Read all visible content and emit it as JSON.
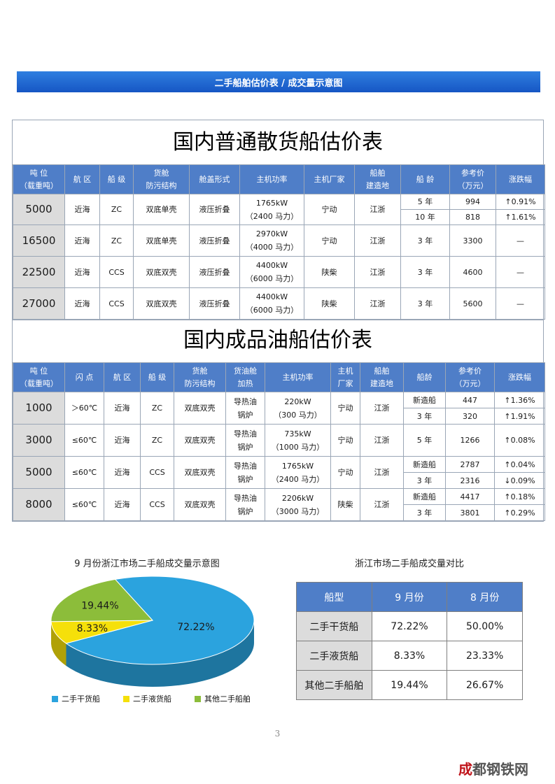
{
  "banner": "二手船舶估价表 / 成交量示意图",
  "bulk": {
    "title": "国内普通散货船估价表",
    "headers": [
      "吨 位",
      "（载重吨）",
      "航 区",
      "船 级",
      "货舱",
      "防污结构",
      "舱盖形式",
      "主机功率",
      "主机厂家",
      "船舶",
      "建造地",
      "船 龄",
      "参考价",
      "（万元）",
      "涨跌幅"
    ],
    "rows": [
      {
        "ton": "5000",
        "area": "近海",
        "cls": "ZC",
        "struct": "双底单壳",
        "cover": "液压折叠",
        "power": "1765kW",
        "hp": "（2400 马力）",
        "maker": "宁动",
        "place": "江浙",
        "subs": [
          {
            "age": "5 年",
            "price": "994",
            "chg": "↑0.91%"
          },
          {
            "age": "10 年",
            "price": "818",
            "chg": "↑1.61%"
          }
        ]
      },
      {
        "ton": "16500",
        "area": "近海",
        "cls": "ZC",
        "struct": "双底单壳",
        "cover": "液压折叠",
        "power": "2970kW",
        "hp": "（4000 马力）",
        "maker": "宁动",
        "place": "江浙",
        "age": "3 年",
        "price": "3300",
        "chg": "—"
      },
      {
        "ton": "22500",
        "area": "近海",
        "cls": "CCS",
        "struct": "双底双壳",
        "cover": "液压折叠",
        "power": "4400kW",
        "hp": "（6000 马力）",
        "maker": "陕柴",
        "place": "江浙",
        "age": "3 年",
        "price": "4600",
        "chg": "—"
      },
      {
        "ton": "27000",
        "area": "近海",
        "cls": "CCS",
        "struct": "双底双壳",
        "cover": "液压折叠",
        "power": "4400kW",
        "hp": "（6000 马力）",
        "maker": "陕柴",
        "place": "江浙",
        "age": "3 年",
        "price": "5600",
        "chg": "—"
      }
    ]
  },
  "oil": {
    "title": "国内成品油船估价表",
    "headers": [
      "吨 位",
      "（载重吨）",
      "闪 点",
      "航 区",
      "船 级",
      "货舱",
      "防污结构",
      "货油舱",
      "加热",
      "主机功率",
      "主机",
      "厂家",
      "船舶",
      "建造地",
      "船龄",
      "参考价",
      "（万元）",
      "涨跌幅"
    ],
    "rows": [
      {
        "ton": "1000",
        "flash": "＞60℃",
        "area": "近海",
        "cls": "ZC",
        "struct": "双底双壳",
        "heat1": "导热油",
        "heat2": "锅炉",
        "power": "220kW",
        "hp": "（300 马力）",
        "maker": "宁动",
        "place": "江浙",
        "subs": [
          {
            "age": "新造船",
            "price": "447",
            "chg": "↑1.36%"
          },
          {
            "age": "3 年",
            "price": "320",
            "chg": "↑1.91%"
          }
        ]
      },
      {
        "ton": "3000",
        "flash": "≤60℃",
        "area": "近海",
        "cls": "ZC",
        "struct": "双底双壳",
        "heat1": "导热油",
        "heat2": "锅炉",
        "power": "735kW",
        "hp": "（1000 马力）",
        "maker": "宁动",
        "place": "江浙",
        "age": "5 年",
        "price": "1266",
        "chg": "↑0.08%"
      },
      {
        "ton": "5000",
        "flash": "≤60℃",
        "area": "近海",
        "cls": "CCS",
        "struct": "双底双壳",
        "heat1": "导热油",
        "heat2": "锅炉",
        "power": "1765kW",
        "hp": "（2400 马力）",
        "maker": "宁动",
        "place": "江浙",
        "subs": [
          {
            "age": "新造船",
            "price": "2787",
            "chg": "↑0.04%"
          },
          {
            "age": "3 年",
            "price": "2316",
            "chg": "↓0.09%"
          }
        ]
      },
      {
        "ton": "8000",
        "flash": "≤60℃",
        "area": "近海",
        "cls": "CCS",
        "struct": "双底双壳",
        "heat1": "导热油",
        "heat2": "锅炉",
        "power": "2206kW",
        "hp": "（3000 马力）",
        "maker": "陕柴",
        "place": "江浙",
        "subs": [
          {
            "age": "新造船",
            "price": "4417",
            "chg": "↑0.18%"
          },
          {
            "age": "3 年",
            "price": "3801",
            "chg": "↑0.29%"
          }
        ]
      }
    ]
  },
  "pie": {
    "title": "9 月份浙江市场二手船成交量示意图",
    "labels": [
      "72.22%",
      "8.33%",
      "19.44%"
    ],
    "legend": [
      "二手干货船",
      "二手液货船",
      "其他二手船舶"
    ]
  },
  "chart_data": {
    "type": "pie",
    "title": "9 月份浙江市场二手船成交量示意图",
    "categories": [
      "二手干货船",
      "二手液货船",
      "其他二手船舶"
    ],
    "values": [
      72.22,
      8.33,
      19.44
    ],
    "colors": [
      "#2ba3de",
      "#f5e00a",
      "#8cbd3a"
    ],
    "legend_position": "bottom"
  },
  "compare": {
    "title": "浙江市场二手船成交量对比",
    "header": [
      "船型",
      "9 月份",
      "8 月份"
    ],
    "rows": [
      [
        "二手干货船",
        "72.22%",
        "50.00%"
      ],
      [
        "二手液货船",
        "8.33%",
        "23.33%"
      ],
      [
        "其他二手船舶",
        "19.44%",
        "26.67%"
      ]
    ]
  },
  "page_number": "3",
  "watermark": "成都钢铁网"
}
